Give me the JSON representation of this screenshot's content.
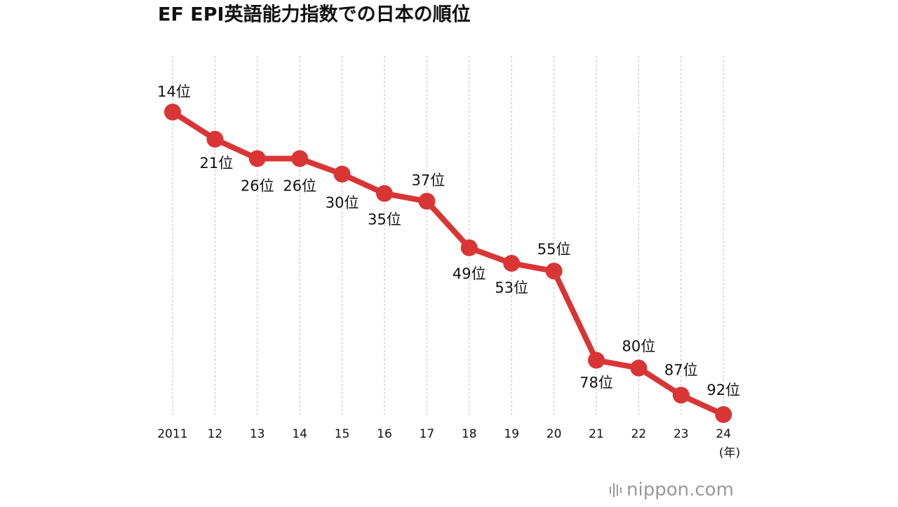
{
  "chart_data": {
    "type": "line",
    "title": "EF EPI英語能力指数での日本の順位",
    "categories": [
      "2011",
      "12",
      "13",
      "14",
      "15",
      "16",
      "17",
      "18",
      "19",
      "20",
      "21",
      "22",
      "23",
      "24"
    ],
    "x_unit": "(年)",
    "y_inverted": true,
    "grid": true,
    "series": [
      {
        "name": "順位",
        "color": "#d93535",
        "values": [
          14,
          21,
          26,
          26,
          30,
          35,
          37,
          49,
          53,
          55,
          78,
          80,
          87,
          92
        ],
        "value_labels": [
          "14位",
          "21位",
          "26位",
          "26位",
          "30位",
          "35位",
          "37位",
          "49位",
          "53位",
          "55位",
          "78位",
          "80位",
          "87位",
          "92位"
        ]
      }
    ],
    "source": "nippon.com"
  }
}
